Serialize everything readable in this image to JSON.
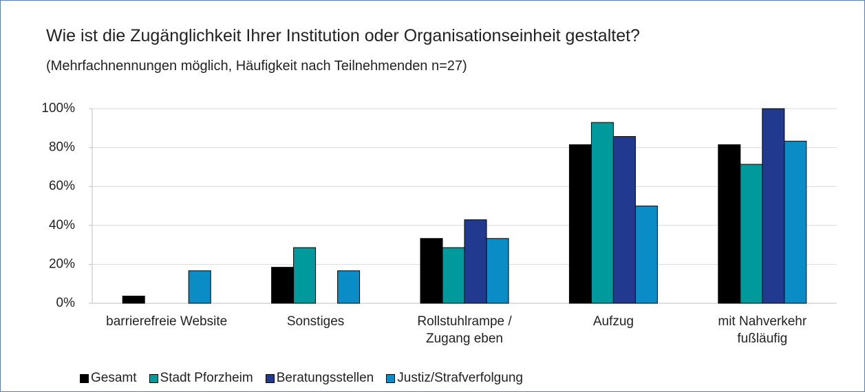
{
  "chart_data": {
    "type": "bar",
    "title": "Wie ist die Zugänglichkeit Ihrer Institution oder Organisationseinheit gestaltet?",
    "subtitle": "(Mehrfachnennungen möglich, Häufigkeit nach Teilnehmenden n=27)",
    "categories": [
      "barrierefreie Website",
      "Sonstiges",
      "Rollstuhlrampe / Zugang eben",
      "Aufzug",
      "mit Nahverkehr fußläufig"
    ],
    "series": [
      {
        "name": "Gesamt",
        "color": "#000000",
        "values": [
          3.7,
          18.5,
          33.3,
          81.5,
          81.5
        ]
      },
      {
        "name": "Stadt Pforzheim",
        "color": "#00999c",
        "values": [
          0,
          28.6,
          28.6,
          92.9,
          71.4
        ]
      },
      {
        "name": "Beratungsstellen",
        "color": "#213a8f",
        "values": [
          0,
          0,
          42.9,
          85.7,
          100
        ]
      },
      {
        "name": "Justiz/Strafverfolgung",
        "color": "#0a8cc6",
        "values": [
          16.7,
          16.7,
          33.3,
          50,
          83.3
        ]
      }
    ],
    "ylim": [
      0,
      100
    ],
    "yticks": [
      {
        "value": 0,
        "label": "0%"
      },
      {
        "value": 20,
        "label": "20%"
      },
      {
        "value": 40,
        "label": "40%"
      },
      {
        "value": 60,
        "label": "60%"
      },
      {
        "value": 80,
        "label": "80%"
      },
      {
        "value": 100,
        "label": "100%"
      }
    ],
    "grid": true,
    "legend": "bottom"
  }
}
